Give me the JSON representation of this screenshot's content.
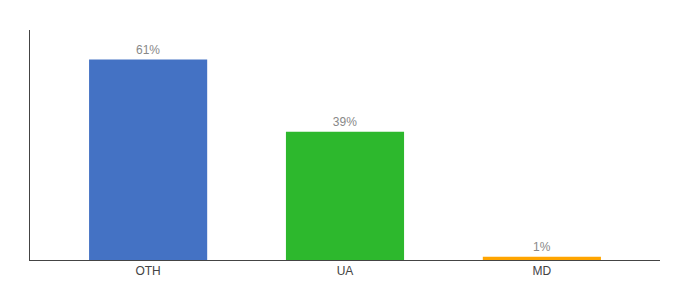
{
  "chart_data": {
    "type": "bar",
    "categories": [
      "OTH",
      "UA",
      "MD"
    ],
    "values": [
      61,
      39,
      1
    ],
    "value_labels": [
      "61%",
      "39%",
      "1%"
    ],
    "colors": [
      "#4472c4",
      "#2db82d",
      "#ffa500"
    ],
    "ylim": [
      0,
      70
    ],
    "data_labels": true,
    "tick_labels": "x",
    "grid": false
  }
}
